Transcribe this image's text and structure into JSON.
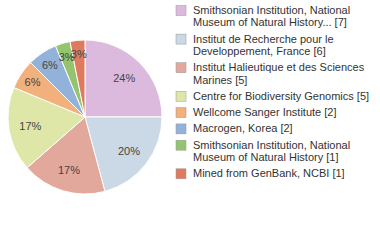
{
  "chart_data": {
    "type": "pie",
    "categories": [
      "Smithsonian Institution, National Museum of Natural History... [7]",
      "Institut de Recherche pour le Developpement, France [6]",
      "Institut Halieutique et des Sciences Marines [5]",
      "Centre for Biodiversity Genomics [5]",
      "Wellcome Sanger Institute [2]",
      "Macrogen, Korea [2]",
      "Smithsonian Institution, National Museum of Natural History [1]",
      "Mined from GenBank, NCBI [1]"
    ],
    "values": [
      24,
      20,
      17,
      17,
      6,
      6,
      3,
      3
    ],
    "value_labels": [
      "24%",
      "20%",
      "17%",
      "17%",
      "6%",
      "6%",
      "3%",
      "3%"
    ],
    "colors": [
      "#dcbadd",
      "#cbd8e6",
      "#e2a89c",
      "#dfe7a8",
      "#f1b07c",
      "#92b2da",
      "#95c46f",
      "#e07a5e"
    ],
    "data_labels": true,
    "legend": "right"
  }
}
